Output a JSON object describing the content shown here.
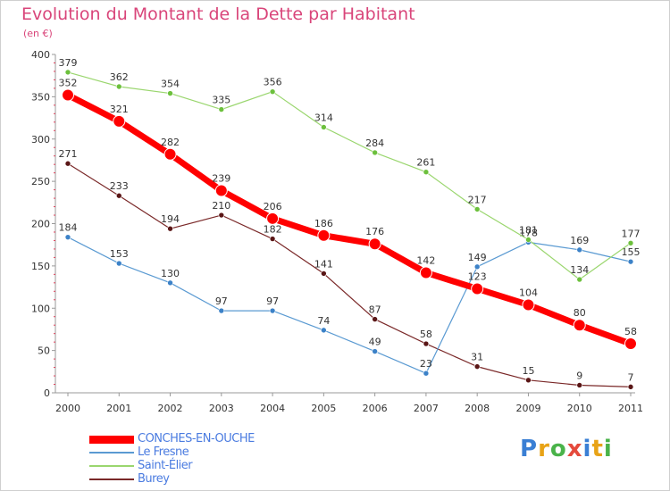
{
  "title": "Evolution du Montant de la Dette par Habitant",
  "unit": "(en €)",
  "logo": {
    "text": "Proxiti",
    "colors": [
      "#3a7fd4",
      "#e8a317",
      "#4ab34a",
      "#e54a3c",
      "#3a7fd4",
      "#e8a317",
      "#4ab34a"
    ]
  },
  "chart_data": {
    "type": "line",
    "title": "Evolution du Montant de la Dette par Habitant",
    "ylabel": "(en €)",
    "xlabel": "",
    "ylim": [
      0,
      400
    ],
    "yticks": [
      0,
      50,
      100,
      150,
      200,
      250,
      300,
      350,
      400
    ],
    "categories": [
      "2000",
      "2001",
      "2002",
      "2003",
      "2004",
      "2005",
      "2006",
      "2007",
      "2008",
      "2009",
      "2010",
      "2011"
    ],
    "grid": false,
    "legend": "bottom-left",
    "series": [
      {
        "name": "Burey",
        "color": "#7a2828",
        "point_color": "#5a1616",
        "width": 1.2,
        "marker": 3,
        "values": [
          271,
          233,
          194,
          210,
          182,
          141,
          87,
          58,
          31,
          15,
          9,
          7
        ]
      },
      {
        "name": "Le Fresne",
        "color": "#5a9ad2",
        "point_color": "#3c82c8",
        "width": 1.2,
        "marker": 3,
        "values": [
          184,
          153,
          130,
          97,
          97,
          74,
          49,
          23,
          149,
          178,
          169,
          155
        ]
      },
      {
        "name": "Saint-Élier",
        "color": "#9ad66e",
        "point_color": "#6cc03c",
        "width": 1.2,
        "marker": 3,
        "values": [
          379,
          362,
          354,
          335,
          356,
          314,
          284,
          261,
          217,
          181,
          134,
          177
        ]
      },
      {
        "name": "CONCHES-EN-OUCHE",
        "color": "#ff0000",
        "point_color": "#ff0000",
        "width": 7,
        "marker": 6.5,
        "values": [
          352,
          321,
          282,
          239,
          206,
          186,
          176,
          142,
          123,
          104,
          80,
          58
        ]
      }
    ],
    "legend_order": [
      "CONCHES-EN-OUCHE",
      "Le Fresne",
      "Saint-Élier",
      "Burey"
    ]
  }
}
